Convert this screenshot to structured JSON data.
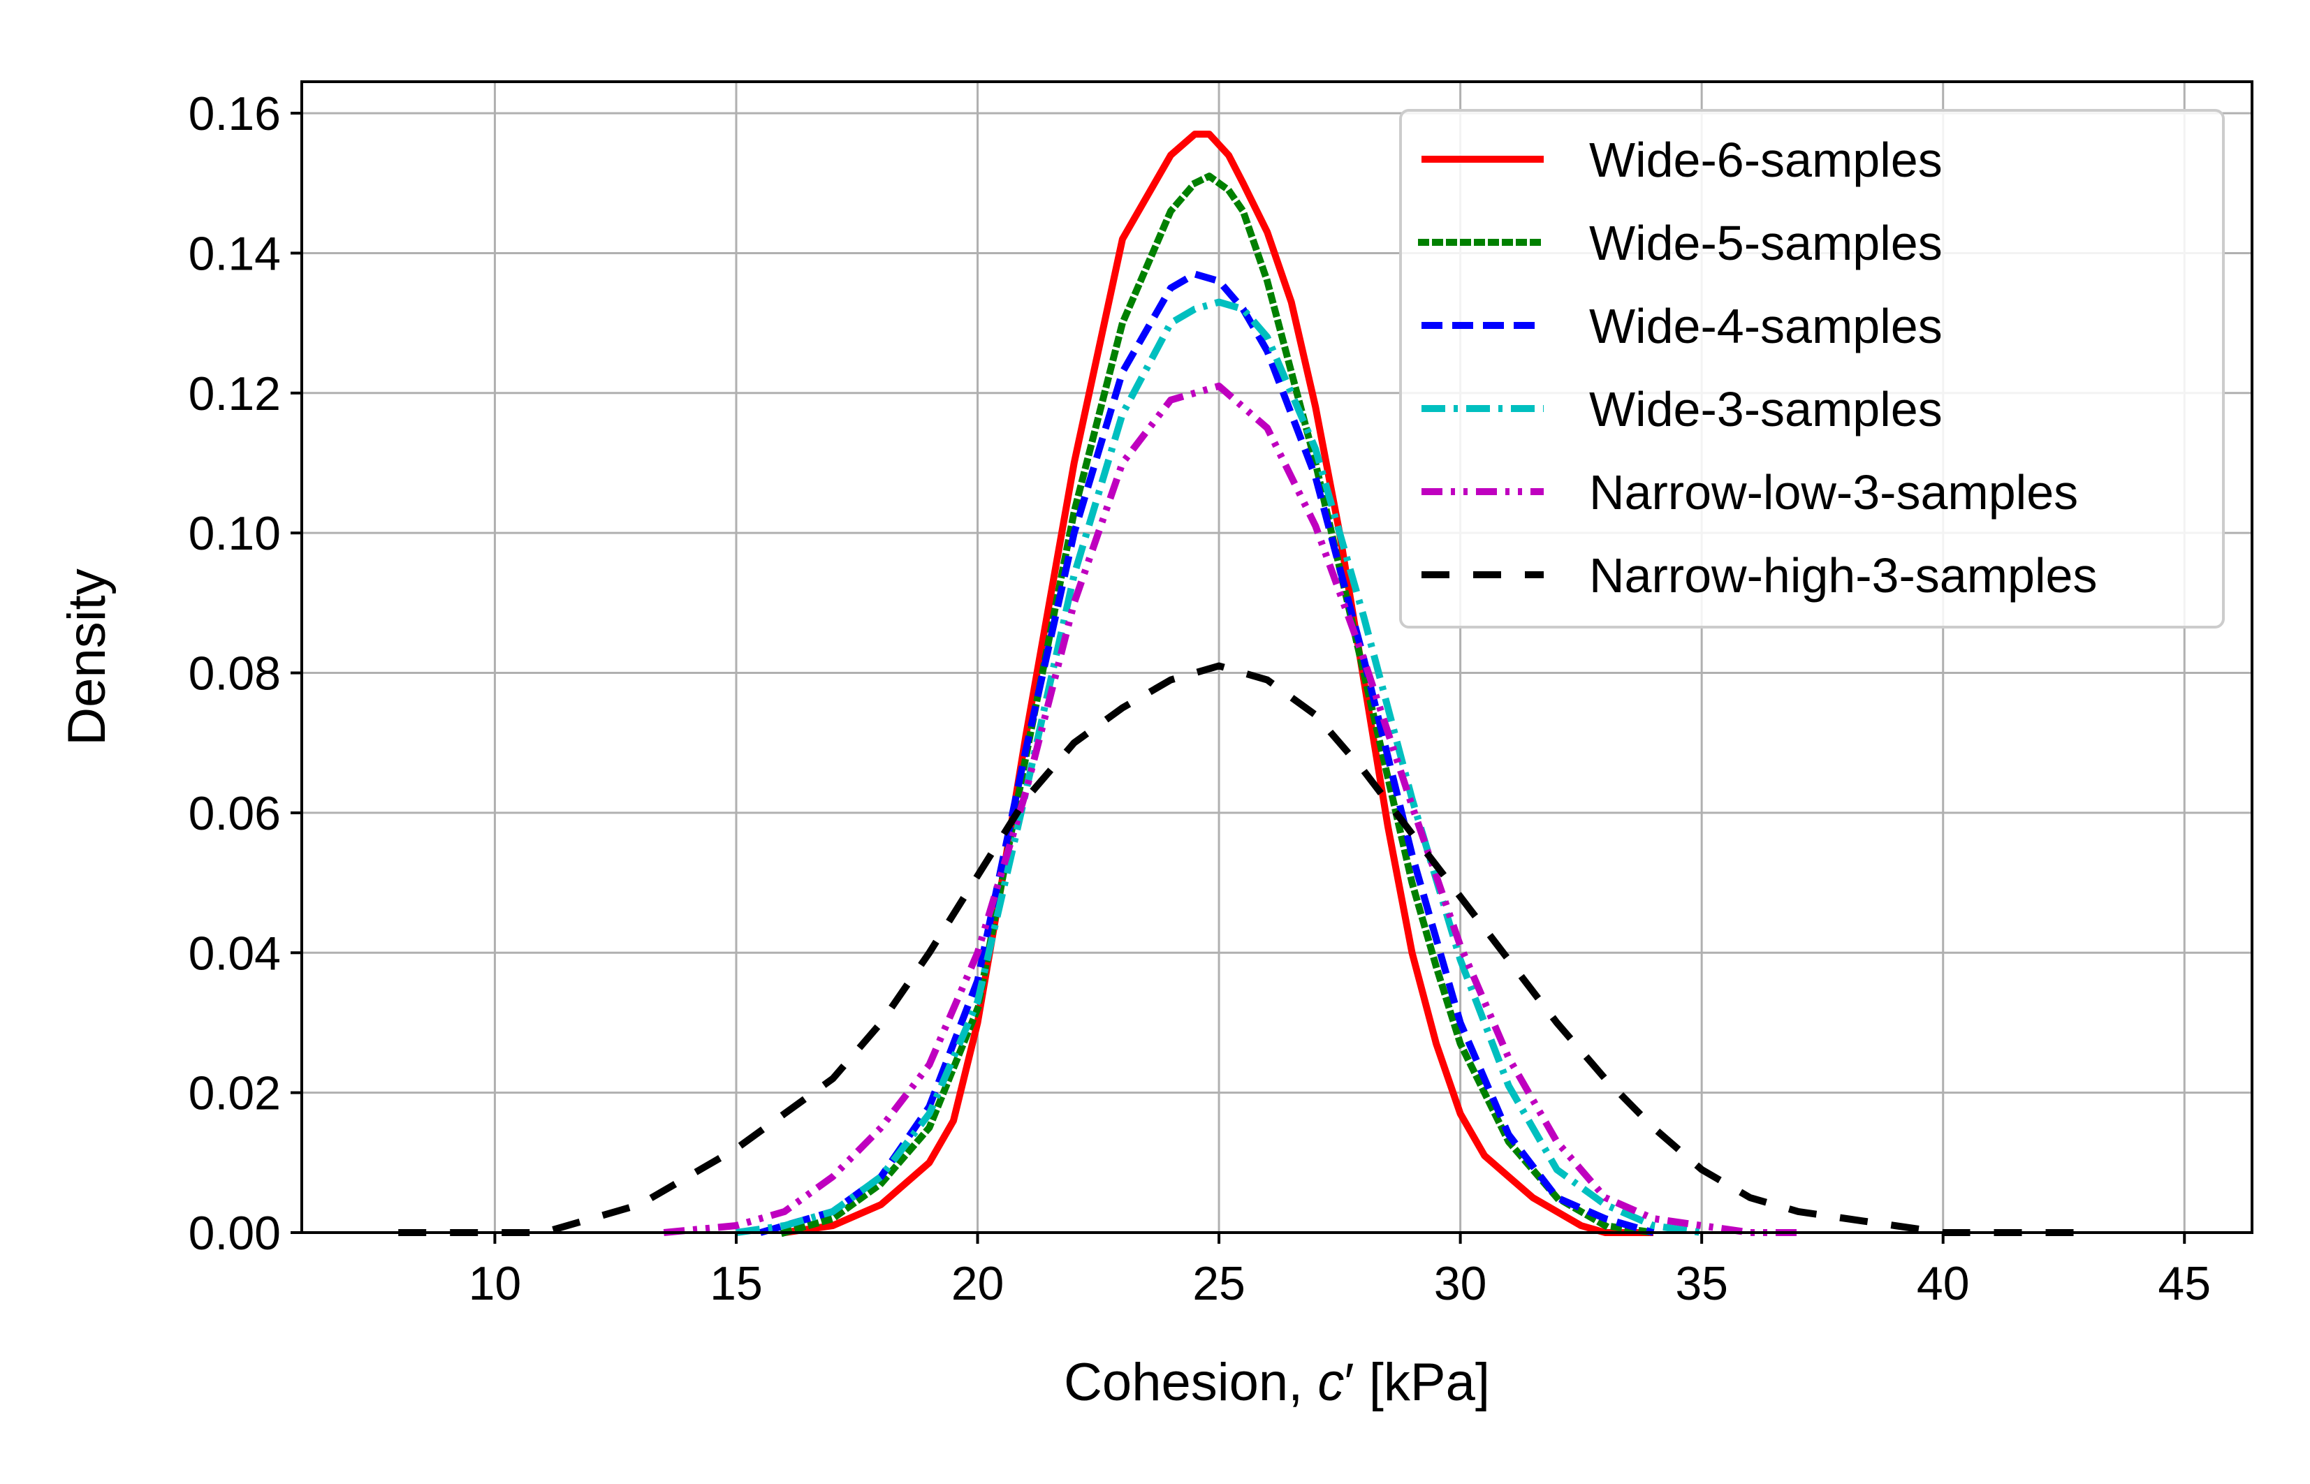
{
  "chart_data": {
    "type": "line",
    "title": "",
    "xlabel_prefix": "Cohesion, ",
    "xlabel_symbol": "c",
    "xlabel_prime": "′",
    "xlabel_suffix": " [kPa]",
    "ylabel": "Density",
    "xlim": [
      6,
      46.4
    ],
    "ylim": [
      0,
      0.1645
    ],
    "xticks": [
      10,
      15,
      20,
      25,
      30,
      35,
      40,
      45
    ],
    "yticks": [
      0.0,
      0.02,
      0.04,
      0.06,
      0.08,
      0.1,
      0.12,
      0.14,
      0.16
    ],
    "ytick_labels": [
      "0.00",
      "0.02",
      "0.04",
      "0.06",
      "0.08",
      "0.10",
      "0.12",
      "0.14",
      "0.16"
    ],
    "grid": true,
    "legend_position": "top-right",
    "series": [
      {
        "name": "Wide-6-samples",
        "color": "#ff0000",
        "style": "solid",
        "x": [
          16.0,
          17.0,
          18.0,
          19.0,
          19.5,
          20.0,
          20.5,
          21.0,
          22.0,
          23.0,
          24.0,
          24.5,
          24.8,
          25.2,
          25.5,
          26.0,
          26.5,
          27.0,
          27.5,
          28.0,
          28.5,
          29.0,
          29.5,
          30.0,
          30.5,
          31.0,
          31.5,
          32.0,
          32.5,
          33.0,
          34.0
        ],
        "y": [
          0.0,
          0.001,
          0.004,
          0.01,
          0.016,
          0.03,
          0.05,
          0.071,
          0.11,
          0.142,
          0.154,
          0.157,
          0.157,
          0.154,
          0.15,
          0.143,
          0.133,
          0.118,
          0.1,
          0.079,
          0.058,
          0.04,
          0.027,
          0.017,
          0.011,
          0.008,
          0.005,
          0.003,
          0.001,
          0.0,
          0.0
        ]
      },
      {
        "name": "Wide-5-samples",
        "color": "#008000",
        "style": "dotted",
        "x": [
          16.0,
          17.0,
          18.0,
          19.0,
          20.0,
          21.0,
          22.0,
          23.0,
          24.0,
          24.5,
          24.8,
          25.2,
          25.5,
          26.0,
          26.5,
          27.0,
          27.5,
          28.0,
          28.5,
          29.0,
          29.5,
          30.0,
          31.0,
          32.0,
          33.0,
          34.0
        ],
        "y": [
          0.0,
          0.002,
          0.007,
          0.015,
          0.032,
          0.068,
          0.103,
          0.13,
          0.146,
          0.15,
          0.151,
          0.149,
          0.146,
          0.136,
          0.123,
          0.11,
          0.095,
          0.08,
          0.065,
          0.05,
          0.038,
          0.027,
          0.013,
          0.005,
          0.001,
          0.0
        ]
      },
      {
        "name": "Wide-4-samples",
        "color": "#0000ff",
        "style": "dashed",
        "x": [
          15.5,
          17.0,
          18.0,
          19.0,
          20.0,
          21.0,
          22.0,
          23.0,
          24.0,
          24.5,
          25.0,
          25.5,
          26.0,
          27.0,
          28.0,
          29.0,
          30.0,
          31.0,
          32.0,
          33.0,
          34.0
        ],
        "y": [
          0.0,
          0.003,
          0.008,
          0.018,
          0.036,
          0.069,
          0.1,
          0.123,
          0.135,
          0.137,
          0.136,
          0.132,
          0.126,
          0.108,
          0.082,
          0.054,
          0.03,
          0.014,
          0.005,
          0.002,
          0.0
        ]
      },
      {
        "name": "Wide-3-samples",
        "color": "#00bfbf",
        "style": "dashdot",
        "x": [
          15.0,
          16.0,
          17.0,
          18.0,
          19.0,
          20.0,
          21.0,
          22.0,
          23.0,
          24.0,
          24.5,
          25.0,
          25.5,
          26.0,
          27.0,
          28.0,
          29.0,
          30.0,
          31.0,
          32.0,
          33.0,
          34.0,
          35.0
        ],
        "y": [
          0.0,
          0.001,
          0.003,
          0.008,
          0.017,
          0.033,
          0.063,
          0.094,
          0.117,
          0.13,
          0.132,
          0.133,
          0.132,
          0.128,
          0.112,
          0.088,
          0.062,
          0.039,
          0.021,
          0.009,
          0.004,
          0.001,
          0.0
        ]
      },
      {
        "name": "Narrow-low-3-samples",
        "color": "#bf00bf",
        "style": "dashdotdot",
        "x": [
          13.5,
          15.0,
          16.0,
          17.0,
          18.0,
          19.0,
          20.0,
          21.0,
          22.0,
          23.0,
          24.0,
          25.0,
          26.0,
          27.0,
          28.0,
          29.0,
          30.0,
          31.0,
          32.0,
          33.0,
          34.0,
          35.0,
          36.0,
          37.0
        ],
        "y": [
          0.0,
          0.001,
          0.003,
          0.008,
          0.015,
          0.024,
          0.04,
          0.063,
          0.09,
          0.11,
          0.119,
          0.121,
          0.115,
          0.101,
          0.082,
          0.061,
          0.041,
          0.025,
          0.013,
          0.005,
          0.002,
          0.001,
          0.0,
          0.0
        ]
      },
      {
        "name": "Narrow-high-3-samples",
        "color": "#000000",
        "style": "longdash",
        "x": [
          8.0,
          10.0,
          11.0,
          12.0,
          13.0,
          14.0,
          15.0,
          16.0,
          17.0,
          18.0,
          19.0,
          20.0,
          21.0,
          22.0,
          23.0,
          24.0,
          25.0,
          26.0,
          27.0,
          28.0,
          29.0,
          30.0,
          31.0,
          32.0,
          33.0,
          34.0,
          35.0,
          36.0,
          37.0,
          38.0,
          39.0,
          40.0,
          42.0,
          43.0
        ],
        "y": [
          0.0,
          0.0,
          0.0,
          0.002,
          0.004,
          0.008,
          0.012,
          0.017,
          0.022,
          0.03,
          0.04,
          0.051,
          0.062,
          0.07,
          0.075,
          0.079,
          0.081,
          0.079,
          0.074,
          0.066,
          0.057,
          0.048,
          0.039,
          0.03,
          0.022,
          0.015,
          0.009,
          0.005,
          0.003,
          0.002,
          0.001,
          0.0,
          0.0,
          0.0
        ]
      }
    ]
  }
}
